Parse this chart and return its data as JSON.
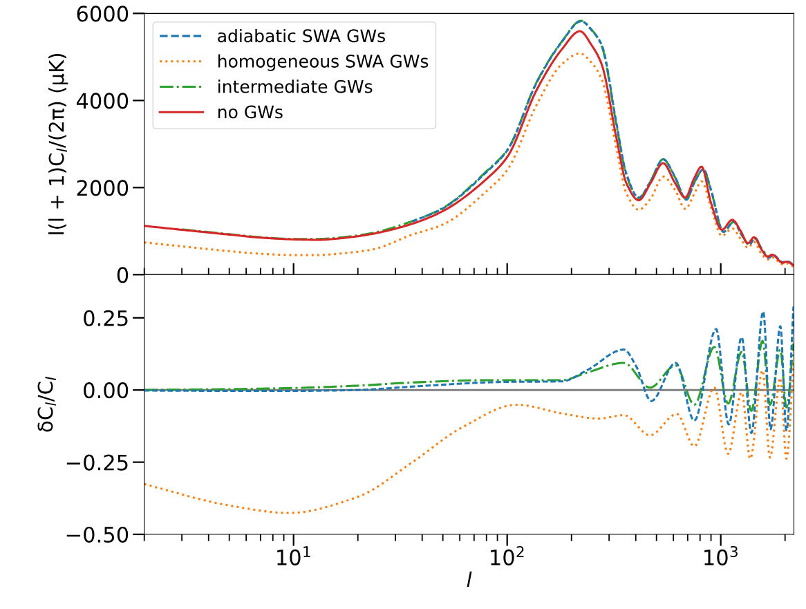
{
  "chart_data": [
    {
      "type": "line",
      "ylabel": "l(l + 1)C$_{l}$/(2π) (μK)",
      "xlim": [
        2,
        2200
      ],
      "ylim": [
        0,
        6000
      ],
      "yticks": [
        0,
        2000,
        4000,
        6000
      ],
      "log": "x",
      "xticks": [
        {
          "value": 10,
          "label": null
        },
        {
          "value": 100,
          "label": null
        },
        {
          "value": 1000,
          "label": null
        }
      ],
      "tick_labels": "y",
      "legend": "top left",
      "grid": false,
      "series": [
        {
          "name": "adiabatic SWA GWs",
          "color": "#1f77b4",
          "line_style": "dashed",
          "x": [
            36,
            50,
            81,
            100,
            138,
            180,
            222,
            250,
            277,
            325,
            361,
            413,
            470,
            537,
            610,
            690,
            750,
            830,
            900,
            1030,
            1150,
            1240,
            1360,
            1450,
            1550,
            1680,
            1760,
            1950,
            2060,
            2200
          ],
          "values": [
            1220,
            1520,
            2380,
            2850,
            4430,
            5340,
            5820,
            5600,
            5280,
            3470,
            2330,
            1770,
            2150,
            2650,
            2250,
            1720,
            2100,
            2420,
            1950,
            980,
            1220,
            950,
            690,
            840,
            600,
            390,
            450,
            290,
            300,
            220
          ]
        },
        {
          "name": "homogeneous SWA GWs",
          "color": "#ff7f0e",
          "line_style": "dotted",
          "x": [
            2,
            3,
            5,
            7,
            10,
            13,
            17,
            23,
            36,
            50,
            81,
            100,
            138,
            180,
            219,
            250,
            277,
            325,
            361,
            413,
            470,
            537,
            610,
            682,
            750,
            813,
            900,
            1012,
            1132,
            1240,
            1340,
            1432,
            1550,
            1660,
            1738,
            1950,
            2030,
            2200
          ],
          "values": [
            740,
            650,
            540,
            480,
            450,
            450,
            490,
            570,
            920,
            1150,
            1940,
            2400,
            3920,
            4830,
            5080,
            4850,
            4490,
            2900,
            1880,
            1490,
            1750,
            2250,
            1950,
            1510,
            1850,
            2140,
            1550,
            890,
            1060,
            820,
            620,
            750,
            480,
            350,
            400,
            240,
            260,
            180
          ]
        },
        {
          "name": "intermediate GWs",
          "color": "#2ca02c",
          "line_style": "dashdot",
          "x": [
            3,
            5,
            7,
            10,
            13,
            17,
            23,
            36,
            50,
            81,
            100,
            138,
            180,
            222,
            250,
            277,
            325,
            361,
            413,
            470,
            537,
            610,
            690,
            750,
            830,
            900,
            1030,
            1150,
            1240,
            1360,
            1450,
            1550,
            1680
          ],
          "values": [
            1040,
            930,
            860,
            820,
            820,
            860,
            950,
            1230,
            1530,
            2400,
            2860,
            4440,
            5350,
            5830,
            5610,
            5250,
            3430,
            2300,
            1760,
            2160,
            2650,
            2240,
            1730,
            2110,
            2410,
            1930,
            990,
            1210,
            950,
            700,
            830,
            600,
            400
          ]
        },
        {
          "name": "no GWs",
          "color": "#d62728",
          "line_style": "solid",
          "x": [
            2,
            3,
            5,
            7,
            10,
            13,
            17,
            23,
            36,
            50,
            81,
            100,
            138,
            180,
            219,
            250,
            277,
            325,
            361,
            413,
            470,
            537,
            610,
            682,
            750,
            813,
            900,
            1012,
            1132,
            1240,
            1340,
            1432,
            1550,
            1660,
            1738,
            1950,
            2030,
            2200
          ],
          "values": [
            1120,
            1030,
            920,
            850,
            810,
            800,
            840,
            930,
            1170,
            1460,
            2220,
            2700,
            4260,
            5170,
            5590,
            5250,
            4830,
            3130,
            2110,
            1710,
            2110,
            2560,
            2110,
            1770,
            2210,
            2480,
            1650,
            1030,
            1260,
            1000,
            720,
            860,
            580,
            410,
            460,
            270,
            300,
            210
          ]
        }
      ]
    },
    {
      "type": "line",
      "xlabel": "l",
      "ylabel": "δC$_{l}$/C$_{l}$",
      "xlim": [
        2,
        2200
      ],
      "ylim": [
        -0.5,
        0.4
      ],
      "yticks": [
        {
          "value": -0.5,
          "label": "−0.50"
        },
        {
          "value": -0.25,
          "label": "−0.25"
        },
        {
          "value": 0,
          "label": "0.00"
        },
        {
          "value": 0.25,
          "label": "0.25"
        }
      ],
      "log": "x",
      "xticks": [
        {
          "value": 10,
          "label": "10$^{1}$"
        },
        {
          "value": 100,
          "label": "10$^{2}$"
        },
        {
          "value": 1000,
          "label": "10$^{3}$"
        }
      ],
      "grid": false,
      "ref_lines": [
        {
          "axis": "y",
          "value": 0,
          "color": "#808080",
          "line_style": "solid"
        }
      ],
      "series": [
        {
          "color": "#1f77b4",
          "line_style": "dashed",
          "x": [
            2,
            5,
            10,
            20,
            36,
            97,
            180,
            236,
            352,
            400,
            473,
            615,
            752,
            951,
            1090,
            1253,
            1390,
            1580,
            1710,
            1900,
            2030,
            2190
          ],
          "values": [
            -0.002,
            -0.003,
            -0.003,
            0.0,
            0.012,
            0.028,
            0.03,
            0.068,
            0.14,
            0.085,
            -0.038,
            0.094,
            -0.106,
            0.211,
            -0.119,
            0.183,
            -0.149,
            0.272,
            -0.136,
            0.221,
            -0.14,
            0.289
          ]
        },
        {
          "color": "#ff7f0e",
          "line_style": "dotted",
          "x": [
            2,
            5,
            9.5,
            20,
            36,
            62,
            111,
            180,
            270,
            352,
            466,
            623,
            752,
            933,
            1083,
            1253,
            1374,
            1569,
            1700,
            1900,
            2030,
            2190
          ],
          "values": [
            -0.326,
            -0.4,
            -0.426,
            -0.37,
            -0.25,
            -0.128,
            -0.051,
            -0.081,
            -0.099,
            -0.087,
            -0.157,
            -0.083,
            -0.195,
            0.008,
            -0.221,
            -0.008,
            -0.238,
            0.068,
            -0.234,
            0.042,
            -0.238,
            0.094
          ]
        },
        {
          "color": "#2ca02c",
          "line_style": "dashdot",
          "x": [
            2,
            5,
            10,
            20,
            36,
            81,
            180,
            236,
            352,
            466,
            615,
            752,
            933,
            1083,
            1253,
            1390,
            1569,
            1700,
            1900,
            2030,
            2190
          ],
          "values": [
            0.0,
            0.003,
            0.007,
            0.015,
            0.026,
            0.034,
            0.034,
            0.06,
            0.094,
            0.008,
            0.085,
            -0.051,
            0.149,
            -0.047,
            0.132,
            -0.072,
            0.17,
            -0.051,
            0.14,
            -0.06,
            0.161
          ]
        }
      ]
    }
  ]
}
